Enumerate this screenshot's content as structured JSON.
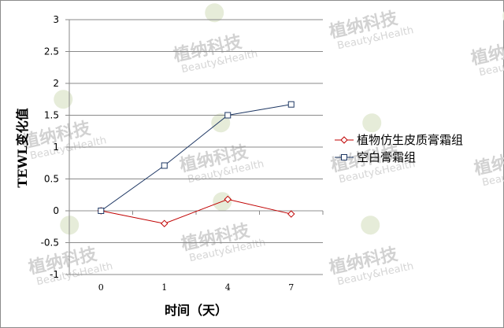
{
  "chart_data": {
    "type": "line",
    "categories": [
      "0",
      "1",
      "4",
      "7"
    ],
    "series": [
      {
        "name": "植物仿生皮质膏霜组",
        "values": [
          0,
          -0.2,
          0.18,
          -0.05
        ],
        "color": "#c00000",
        "marker": "diamond"
      },
      {
        "name": "空白膏霜组",
        "values": [
          0,
          0.71,
          1.5,
          1.67
        ],
        "color": "#1f3864",
        "marker": "square"
      }
    ],
    "xlabel": "时间（天）",
    "ylabel": "TEWL变化值",
    "ylim": [
      -1,
      3
    ],
    "yticks": [
      "-1",
      "-0.5",
      "0",
      "0.5",
      "1",
      "1.5",
      "2",
      "2.5",
      "3"
    ],
    "grid": true,
    "legend": "right"
  },
  "watermark": {
    "cn": "植纳科技",
    "en": "Beauty&Health"
  }
}
